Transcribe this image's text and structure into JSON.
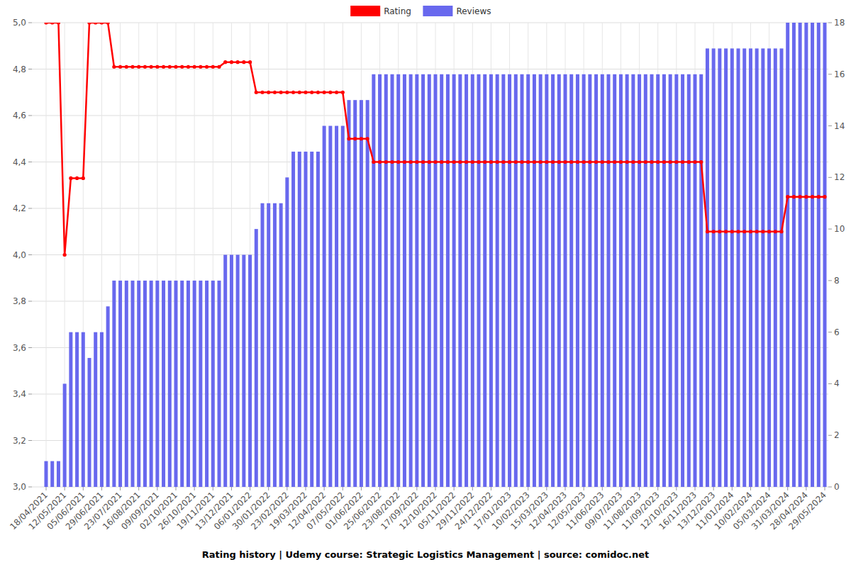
{
  "chart_data": {
    "type": "bar",
    "title": "Rating history | Udemy course: Strategic Logistics Management | source: comidoc.net",
    "categories": [
      "18/04/2021",
      null,
      null,
      "12/05/2021",
      null,
      null,
      "05/06/2021",
      null,
      null,
      "29/06/2021",
      null,
      null,
      "23/07/2021",
      null,
      null,
      "16/08/2021",
      null,
      null,
      "09/09/2021",
      null,
      null,
      "02/10/2021",
      null,
      null,
      "26/10/2021",
      null,
      null,
      "19/11/2021",
      null,
      null,
      "13/12/2021",
      null,
      null,
      "06/01/2022",
      null,
      null,
      "30/01/2022",
      null,
      null,
      "23/02/2022",
      null,
      null,
      "19/03/2022",
      null,
      null,
      "12/04/2022",
      null,
      null,
      "07/05/2022",
      null,
      null,
      "01/06/2022",
      null,
      null,
      "25/06/2022",
      null,
      null,
      "23/08/2022",
      null,
      null,
      "17/09/2022",
      null,
      null,
      "12/10/2022",
      null,
      null,
      "05/11/2022",
      null,
      null,
      "29/11/2022",
      null,
      null,
      "24/12/2022",
      null,
      null,
      "17/01/2023",
      null,
      null,
      "10/02/2023",
      null,
      null,
      "15/03/2023",
      null,
      null,
      "12/04/2023",
      null,
      null,
      "12/05/2023",
      null,
      null,
      "11/06/2023",
      null,
      null,
      "09/07/2023",
      null,
      null,
      "11/08/2023",
      null,
      null,
      "11/09/2023",
      null,
      null,
      "12/10/2023",
      null,
      null,
      "16/11/2023",
      null,
      null,
      "13/12/2023",
      null,
      null,
      "11/01/2024",
      null,
      null,
      "10/02/2024",
      null,
      null,
      "05/03/2024",
      null,
      null,
      "31/03/2024",
      null,
      null,
      "28/04/2024",
      null,
      null,
      "29/05/2024"
    ],
    "series": [
      {
        "name": "Rating",
        "type": "line",
        "color": "#ff0000",
        "marker": "circle",
        "values": [
          5,
          5,
          5,
          4,
          4.33,
          4.33,
          4.33,
          5,
          5,
          5,
          5,
          4.81,
          4.81,
          4.81,
          4.81,
          4.81,
          4.81,
          4.81,
          4.81,
          4.81,
          4.81,
          4.81,
          4.81,
          4.81,
          4.81,
          4.81,
          4.81,
          4.81,
          4.81,
          4.83,
          4.83,
          4.83,
          4.83,
          4.83,
          4.7,
          4.7,
          4.7,
          4.7,
          4.7,
          4.7,
          4.7,
          4.7,
          4.7,
          4.7,
          4.7,
          4.7,
          4.7,
          4.7,
          4.7,
          4.5,
          4.5,
          4.5,
          4.5,
          4.4,
          4.4,
          4.4,
          4.4,
          4.4,
          4.4,
          4.4,
          4.4,
          4.4,
          4.4,
          4.4,
          4.4,
          4.4,
          4.4,
          4.4,
          4.4,
          4.4,
          4.4,
          4.4,
          4.4,
          4.4,
          4.4,
          4.4,
          4.4,
          4.4,
          4.4,
          4.4,
          4.4,
          4.4,
          4.4,
          4.4,
          4.4,
          4.4,
          4.4,
          4.4,
          4.4,
          4.4,
          4.4,
          4.4,
          4.4,
          4.4,
          4.4,
          4.4,
          4.4,
          4.4,
          4.4,
          4.4,
          4.4,
          4.4,
          4.4,
          4.4,
          4.4,
          4.4,
          4.4,
          4.1,
          4.1,
          4.1,
          4.1,
          4.1,
          4.1,
          4.1,
          4.1,
          4.1,
          4.1,
          4.1,
          4.1,
          4.1,
          4.25,
          4.25,
          4.25,
          4.25,
          4.25,
          4.25,
          4.25
        ]
      },
      {
        "name": "Reviews",
        "type": "bar",
        "color": "#6868ee",
        "axis": "y2",
        "values": [
          1,
          1,
          1,
          4,
          6,
          6,
          6,
          5,
          6,
          6,
          7,
          8,
          8,
          8,
          8,
          8,
          8,
          8,
          8,
          8,
          8,
          8,
          8,
          8,
          8,
          8,
          8,
          8,
          8,
          9,
          9,
          9,
          9,
          9,
          10,
          11,
          11,
          11,
          11,
          12,
          13,
          13,
          13,
          13,
          13,
          14,
          14,
          14,
          14,
          15,
          15,
          15,
          15,
          16,
          16,
          16,
          16,
          16,
          16,
          16,
          16,
          16,
          16,
          16,
          16,
          16,
          16,
          16,
          16,
          16,
          16,
          16,
          16,
          16,
          16,
          16,
          16,
          16,
          16,
          16,
          16,
          16,
          16,
          16,
          16,
          16,
          16,
          16,
          16,
          16,
          16,
          16,
          16,
          16,
          16,
          16,
          16,
          16,
          16,
          16,
          16,
          16,
          16,
          16,
          16,
          16,
          16,
          17,
          17,
          17,
          17,
          17,
          17,
          17,
          17,
          17,
          17,
          17,
          17,
          17,
          18,
          18,
          18,
          18,
          18,
          18,
          18
        ]
      }
    ],
    "ylim": [
      3,
      5
    ],
    "yticks": [
      {
        "value": 3,
        "label": "3,0"
      },
      {
        "value": 3.2,
        "label": "3,2"
      },
      {
        "value": 3.4,
        "label": "3,4"
      },
      {
        "value": 3.6,
        "label": "3,6"
      },
      {
        "value": 3.8,
        "label": "3,8"
      },
      {
        "value": 4,
        "label": "4,0"
      },
      {
        "value": 4.2,
        "label": "4,2"
      },
      {
        "value": 4.4,
        "label": "4,4"
      },
      {
        "value": 4.6,
        "label": "4,6"
      },
      {
        "value": 4.8,
        "label": "4,8"
      },
      {
        "value": 5,
        "label": "5,0"
      }
    ],
    "y2lim": [
      0,
      18
    ],
    "y2ticks": [
      0,
      2,
      4,
      6,
      8,
      10,
      12,
      14,
      16,
      18
    ],
    "grid": true,
    "legend": "top"
  }
}
